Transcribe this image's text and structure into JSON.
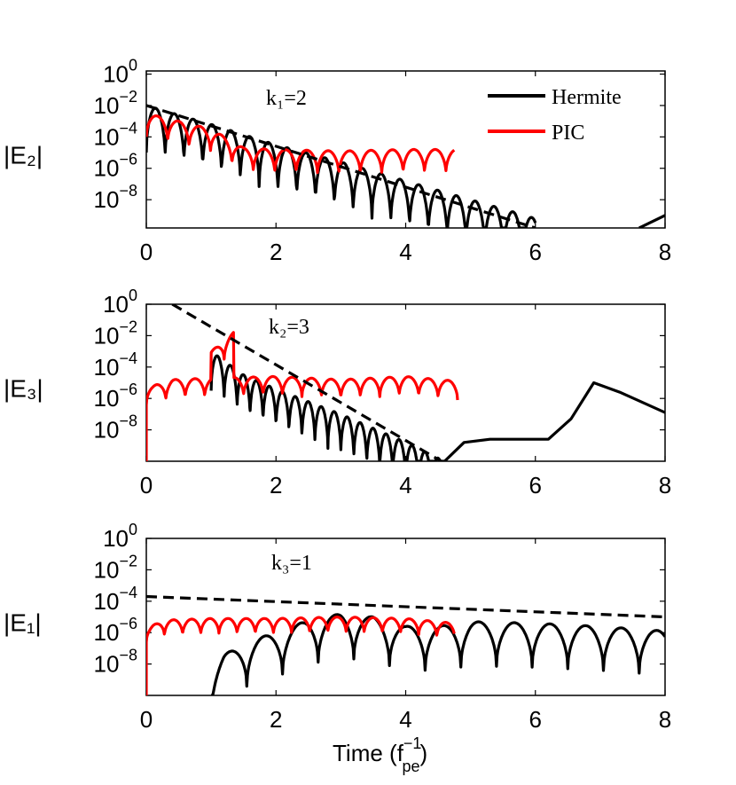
{
  "chart_data": [
    {
      "type": "line",
      "ylabel": "|E₂|",
      "annotation": "k₁=2",
      "xlim": [
        0,
        8
      ],
      "ylim_log10": [
        -9.8,
        0.2
      ],
      "x_ticks": [
        "0",
        "2",
        "4",
        "6",
        "8"
      ],
      "y_ticks": [
        {
          "base": "10",
          "exp": "0"
        },
        {
          "base": "10",
          "exp": "−2"
        },
        {
          "base": "10",
          "exp": "−4"
        },
        {
          "base": "10",
          "exp": "−6"
        },
        {
          "base": "10",
          "exp": "−8"
        }
      ],
      "legend": [
        {
          "name": "Hermite",
          "color": "#000000"
        },
        {
          "name": "PIC",
          "color": "#ff0000"
        }
      ],
      "series": [
        {
          "name": "Hermite",
          "color": "#000000",
          "style": "solid",
          "x": [
            0.0,
            1.0,
            2.0,
            3.0,
            4.0,
            5.0,
            5.6,
            6.0
          ],
          "log10_upper": [
            -2.0,
            -3.2,
            -4.5,
            -5.6,
            -6.8,
            -8.0,
            -8.7,
            -9.2
          ],
          "oscillation_period": 0.29,
          "dip_depth_decades": 3.0,
          "recovery": {
            "x": [
              7.6,
              8.0
            ],
            "log10": [
              -9.8,
              -9.0
            ]
          }
        },
        {
          "name": "PIC",
          "color": "#ff0000",
          "style": "solid",
          "x": [
            0.0,
            1.0,
            1.5,
            2.0,
            3.0,
            4.0,
            4.75
          ],
          "log10_upper": [
            -2.5,
            -3.5,
            -4.7,
            -4.8,
            -4.9,
            -4.8,
            -4.8
          ],
          "oscillation_period": 0.33,
          "dip_depth_decades": 1.5
        },
        {
          "name": "decay fit",
          "color": "#000000",
          "style": "dashed",
          "x": [
            0.0,
            6.0
          ],
          "log10": [
            -2.0,
            -9.8
          ]
        }
      ]
    },
    {
      "type": "line",
      "ylabel": "|E₃|",
      "annotation": "k₂=3",
      "xlim": [
        0,
        8
      ],
      "ylim_log10": [
        -10.0,
        0.0
      ],
      "x_ticks": [
        "0",
        "2",
        "4",
        "6",
        "8"
      ],
      "y_ticks": [
        {
          "base": "10",
          "exp": "0"
        },
        {
          "base": "10",
          "exp": "−2"
        },
        {
          "base": "10",
          "exp": "−4"
        },
        {
          "base": "10",
          "exp": "−6"
        },
        {
          "base": "10",
          "exp": "−8"
        }
      ],
      "series": [
        {
          "name": "Hermite",
          "color": "#000000",
          "style": "solid",
          "x": [
            1.0,
            1.5,
            2.0,
            3.0,
            4.0,
            4.6
          ],
          "log10_upper": [
            -3.0,
            -4.5,
            -5.4,
            -7.0,
            -8.8,
            -10.0
          ],
          "oscillation_period": 0.2,
          "dip_depth_decades": 2.5,
          "tail": {
            "x": [
              4.6,
              4.9,
              5.3,
              6.2,
              6.55,
              6.9,
              7.3,
              8.0
            ],
            "log10": [
              -10.0,
              -8.8,
              -8.6,
              -8.6,
              -7.3,
              -5.0,
              -5.6,
              -6.9
            ]
          }
        },
        {
          "name": "PIC",
          "color": "#ff0000",
          "style": "solid",
          "x": [
            0.0,
            0.1,
            0.4,
            1.0,
            2.0,
            3.0,
            4.0,
            4.8
          ],
          "log10_upper": [
            -10.0,
            -5.2,
            -4.8,
            -4.7,
            -4.6,
            -4.8,
            -4.6,
            -4.9
          ],
          "spike": {
            "x": 1.0,
            "log10": -3.0
          },
          "oscillation_period": 0.3,
          "dip_depth_decades": 1.2
        },
        {
          "name": "decay fit",
          "color": "#000000",
          "style": "dashed",
          "x": [
            0.4,
            4.55
          ],
          "log10": [
            0.0,
            -10.0
          ]
        }
      ]
    },
    {
      "type": "line",
      "ylabel": "|E₁|",
      "annotation": "k₃=1",
      "xlim": [
        0,
        8
      ],
      "ylim_log10": [
        -10.0,
        0.0
      ],
      "x_ticks": [
        "0",
        "2",
        "4",
        "6",
        "8"
      ],
      "y_ticks": [
        {
          "base": "10",
          "exp": "0"
        },
        {
          "base": "10",
          "exp": "−2"
        },
        {
          "base": "10",
          "exp": "−4"
        },
        {
          "base": "10",
          "exp": "−6"
        },
        {
          "base": "10",
          "exp": "−8"
        }
      ],
      "xlabel": {
        "text": "Time (f",
        "sup": "−1",
        "sub": "pe",
        "close": ")"
      },
      "series": [
        {
          "name": "Hermite",
          "color": "#000000",
          "style": "solid",
          "x": [
            1.0,
            1.2,
            1.6,
            2.0,
            2.5,
            3.0,
            3.5,
            4.0,
            4.5,
            5.0,
            6.0,
            7.0,
            8.0
          ],
          "log10_upper": [
            -8.4,
            -7.4,
            -6.5,
            -6.0,
            -5.2,
            -4.8,
            -5.0,
            -5.6,
            -5.6,
            -5.3,
            -5.4,
            -5.6,
            -5.9
          ],
          "oscillation_period": 0.55,
          "dip_depth_decades": 2.8
        },
        {
          "name": "PIC",
          "color": "#ff0000",
          "style": "solid",
          "x": [
            0.0,
            0.05,
            0.3,
            1.0,
            2.0,
            3.0,
            4.0,
            4.75
          ],
          "log10_upper": [
            -10.0,
            -5.6,
            -5.2,
            -5.1,
            -5.1,
            -5.0,
            -5.1,
            -5.4
          ],
          "oscillation_period": 0.28,
          "dip_depth_decades": 1.0
        },
        {
          "name": "decay fit",
          "color": "#000000",
          "style": "dashed",
          "x": [
            0.0,
            8.0
          ],
          "log10": [
            -3.7,
            -5.0
          ]
        }
      ]
    }
  ]
}
